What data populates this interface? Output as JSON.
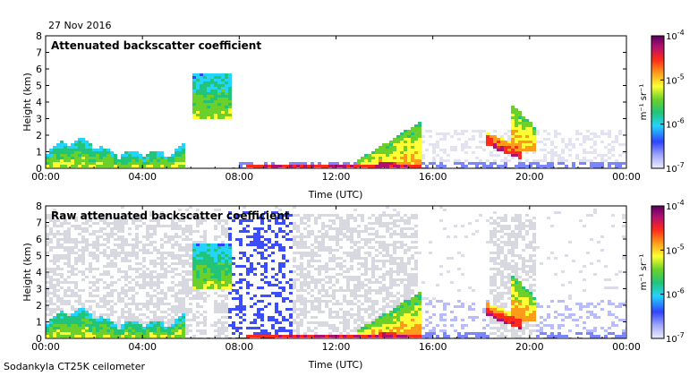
{
  "header": {
    "date": "27 Nov 2016",
    "footer": "Sodankyla CT25K ceilometer"
  },
  "chart_data": [
    {
      "type": "heatmap",
      "title": "Attenuated backscatter coefficient",
      "xlabel": "Time (UTC)",
      "ylabel": "Height (km)",
      "x_ticks": [
        "00:00",
        "04:00",
        "08:00",
        "12:00",
        "16:00",
        "20:00",
        "00:00"
      ],
      "y_ticks": [
        "0",
        "1",
        "2",
        "3",
        "4",
        "5",
        "6",
        "7",
        "8"
      ],
      "xlim_hours": [
        0,
        24
      ],
      "ylim_km": [
        0,
        8
      ],
      "colorbar": {
        "ticks": [
          {
            "base": "10",
            "exp": "-4"
          },
          {
            "base": "10",
            "exp": "-5"
          },
          {
            "base": "10",
            "exp": "-6"
          },
          {
            "base": "10",
            "exp": "-7"
          }
        ],
        "unit": "m⁻¹ sr⁻¹",
        "colors": [
          "#eeeeff",
          "#9ea6ff",
          "#3044ff",
          "#23d4ff",
          "#22c47a",
          "#6bd12a",
          "#ffff33",
          "#ff9b1a",
          "#ff2a1a",
          "#b01070",
          "#5a0060"
        ]
      }
    },
    {
      "type": "heatmap",
      "title": "Raw attenuated backscatter coefficient",
      "xlabel": "Time (UTC)",
      "ylabel": "Height (km)",
      "x_ticks": [
        "00:00",
        "04:00",
        "08:00",
        "12:00",
        "16:00",
        "20:00",
        "00:00"
      ],
      "y_ticks": [
        "0",
        "1",
        "2",
        "3",
        "4",
        "5",
        "6",
        "7",
        "8"
      ],
      "xlim_hours": [
        0,
        24
      ],
      "ylim_km": [
        0,
        8
      ],
      "colorbar": {
        "ticks": [
          {
            "base": "10",
            "exp": "-4"
          },
          {
            "base": "10",
            "exp": "-5"
          },
          {
            "base": "10",
            "exp": "-6"
          },
          {
            "base": "10",
            "exp": "-7"
          }
        ],
        "unit": "m⁻¹ sr⁻¹",
        "colors": [
          "#eeeeff",
          "#9ea6ff",
          "#3044ff",
          "#23d4ff",
          "#22c47a",
          "#6bd12a",
          "#ffff33",
          "#ff9b1a",
          "#ff2a1a",
          "#b01070",
          "#5a0060"
        ]
      }
    }
  ]
}
